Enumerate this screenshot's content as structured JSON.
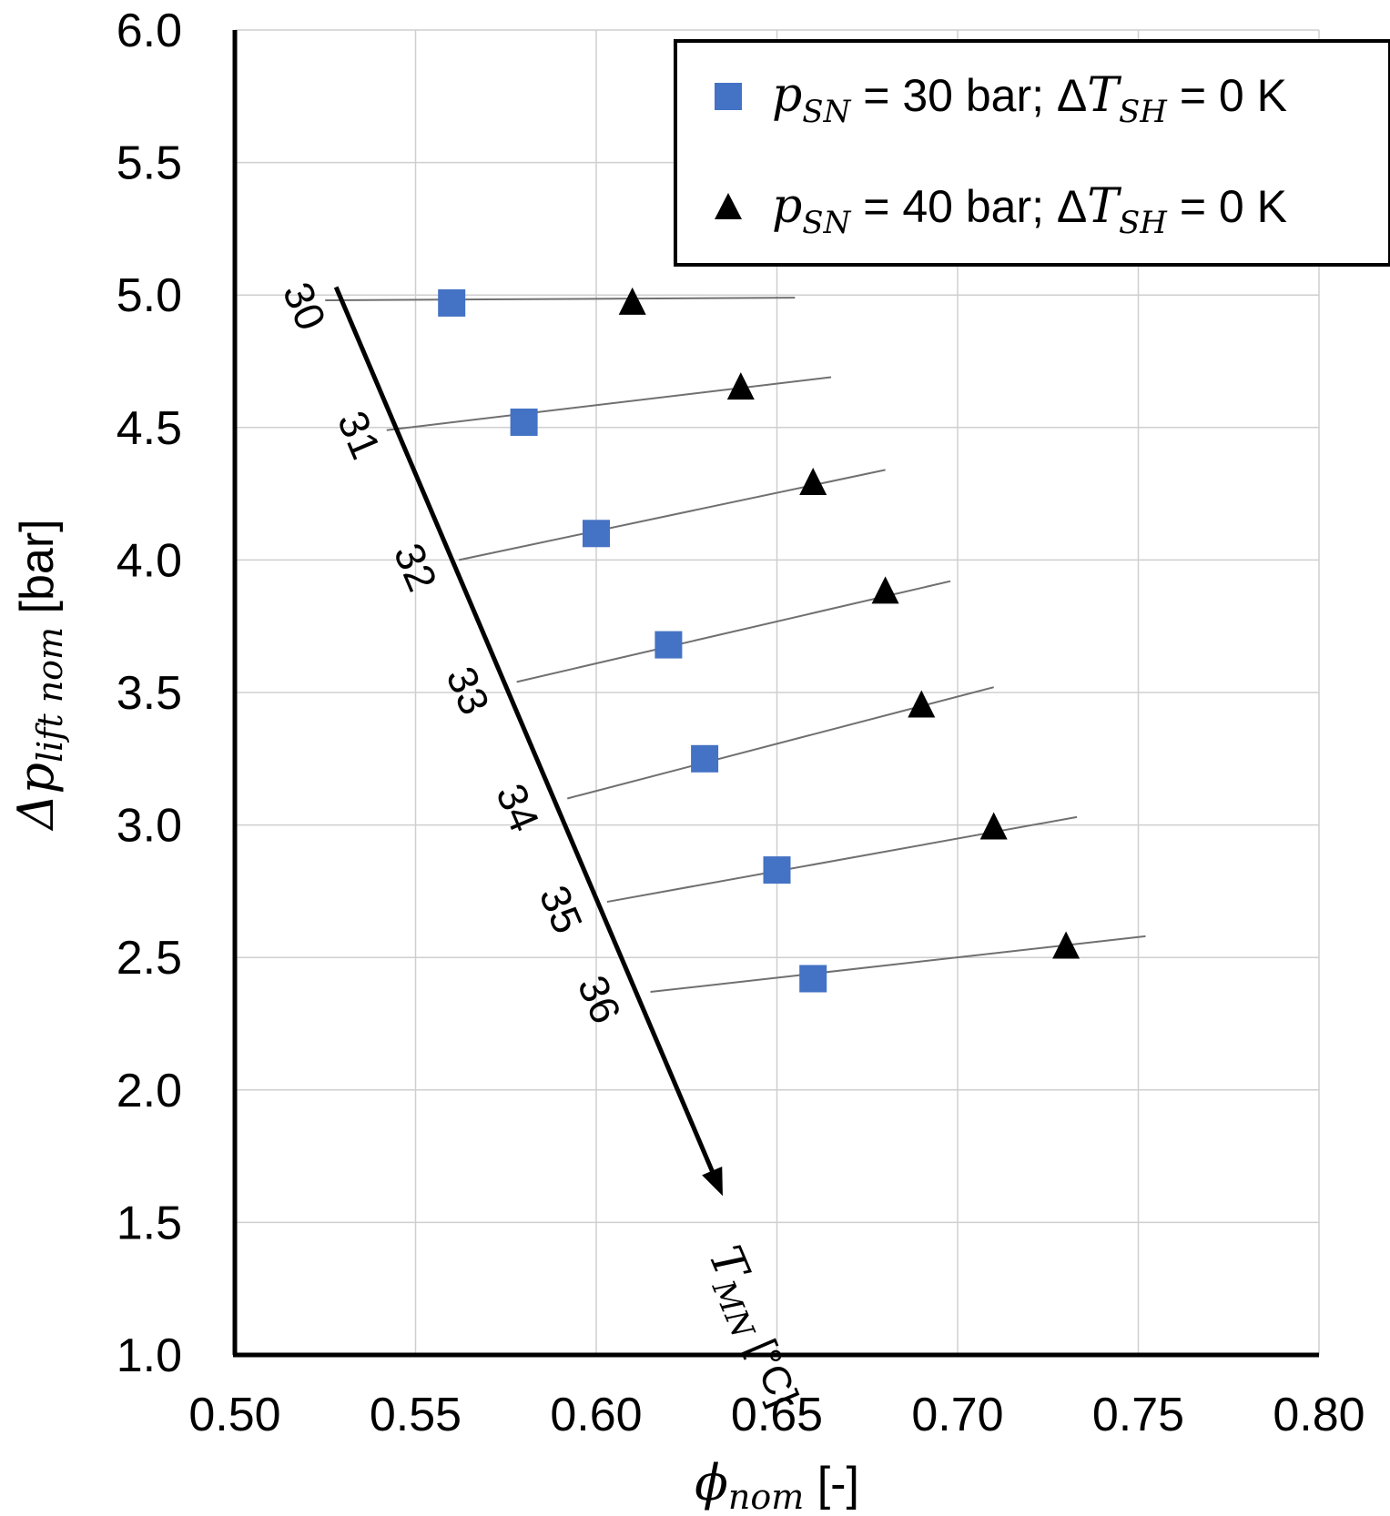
{
  "chart_data": {
    "type": "scatter",
    "title": "",
    "xlabel": {
      "symbol": "ϕ",
      "sub": "nom",
      "unit": "[-]"
    },
    "ylabel": {
      "symbol": "Δp",
      "sub": "lift nom",
      "unit": "[bar]"
    },
    "xlim": [
      0.5,
      0.8
    ],
    "ylim": [
      1.0,
      6.0
    ],
    "x_ticks": [
      "0.50",
      "0.55",
      "0.60",
      "0.65",
      "0.70",
      "0.75",
      "0.80"
    ],
    "y_ticks": [
      "1.0",
      "1.5",
      "2.0",
      "2.5",
      "3.0",
      "3.5",
      "4.0",
      "4.5",
      "5.0",
      "5.5",
      "6.0"
    ],
    "grid": true,
    "legend_position": "top-right",
    "series": [
      {
        "name": "p_SN = 30 bar; ΔT_SH = 0 K",
        "marker": "square",
        "color": "#4472C4",
        "label": {
          "p": "p",
          "p_sub": "SN",
          "mid": " = 30 bar; Δ",
          "t": "T",
          "t_sub": "SH",
          "end": " = 0 K"
        },
        "x": [
          0.56,
          0.58,
          0.6,
          0.62,
          0.63,
          0.65,
          0.66
        ],
        "y": [
          4.97,
          4.52,
          4.1,
          3.68,
          3.25,
          2.83,
          2.42
        ]
      },
      {
        "name": "p_SN = 40 bar; ΔT_SH = 0 K",
        "marker": "triangle",
        "color": "#000000",
        "label": {
          "p": "p",
          "p_sub": "SN",
          "mid": " = 40 bar; Δ",
          "t": "T",
          "t_sub": "SH",
          "end": " = 0 K"
        },
        "x": [
          0.61,
          0.64,
          0.66,
          0.68,
          0.69,
          0.71,
          0.73
        ],
        "y": [
          4.97,
          4.65,
          4.29,
          3.88,
          3.45,
          2.99,
          2.54
        ]
      }
    ],
    "iso_lines": [
      {
        "label": "30",
        "x": [
          0.525,
          0.655
        ],
        "y": [
          4.98,
          4.99
        ]
      },
      {
        "label": "31",
        "x": [
          0.542,
          0.665
        ],
        "y": [
          4.49,
          4.69
        ]
      },
      {
        "label": "32",
        "x": [
          0.562,
          0.68
        ],
        "y": [
          4.0,
          4.34
        ]
      },
      {
        "label": "33",
        "x": [
          0.578,
          0.698
        ],
        "y": [
          3.54,
          3.92
        ]
      },
      {
        "label": "34",
        "x": [
          0.592,
          0.71
        ],
        "y": [
          3.1,
          3.52
        ]
      },
      {
        "label": "35",
        "x": [
          0.603,
          0.733
        ],
        "y": [
          2.71,
          3.03
        ]
      },
      {
        "label": "36",
        "x": [
          0.615,
          0.752
        ],
        "y": [
          2.37,
          2.58
        ]
      }
    ],
    "arrow": {
      "label": {
        "t": "T",
        "sub": "MN",
        "unit": " [°C]"
      },
      "x": [
        0.528,
        0.635
      ],
      "y": [
        5.03,
        1.6
      ]
    }
  }
}
